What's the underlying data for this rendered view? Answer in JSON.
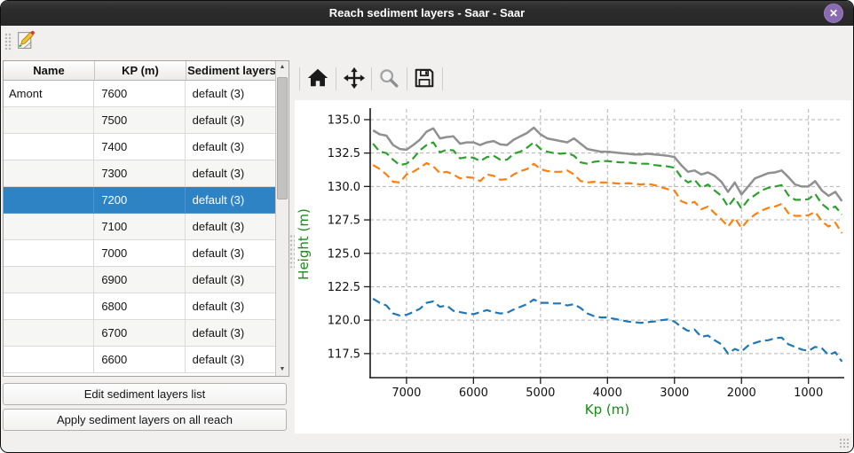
{
  "window": {
    "title": "Reach sediment layers - Saar - Saar",
    "close_glyph": "✕"
  },
  "icons": {
    "edit": "document-pencil",
    "home": "home",
    "pan": "move-arrows",
    "zoom": "magnifier",
    "save": "floppy-disk"
  },
  "table": {
    "columns": [
      "Name",
      "KP (m)",
      "Sediment layers"
    ],
    "selected_index": 4,
    "rows": [
      {
        "name": "Amont",
        "kp": "7600",
        "layers": "default (3)"
      },
      {
        "name": "",
        "kp": "7500",
        "layers": "default (3)"
      },
      {
        "name": "",
        "kp": "7400",
        "layers": "default (3)"
      },
      {
        "name": "",
        "kp": "7300",
        "layers": "default (3)"
      },
      {
        "name": "",
        "kp": "7200",
        "layers": "default (3)"
      },
      {
        "name": "",
        "kp": "7100",
        "layers": "default (3)"
      },
      {
        "name": "",
        "kp": "7000",
        "layers": "default (3)"
      },
      {
        "name": "",
        "kp": "6900",
        "layers": "default (3)"
      },
      {
        "name": "",
        "kp": "6800",
        "layers": "default (3)"
      },
      {
        "name": "",
        "kp": "6700",
        "layers": "default (3)"
      },
      {
        "name": "",
        "kp": "6600",
        "layers": "default (3)"
      }
    ]
  },
  "actions": {
    "edit_list": "Edit sediment layers list",
    "apply_all": "Apply sediment layers on all reach"
  },
  "colors": {
    "selection": "#2e83c5",
    "axis_label_green": "#178c17",
    "titlebar": "#2d2d2d",
    "close_button": "#8a6ab0"
  },
  "chart_data": {
    "type": "line",
    "xlabel": "Kp (m)",
    "ylabel": "Height (m)",
    "x_inverted": true,
    "xlim": [
      7542,
      466
    ],
    "ylim": [
      115.7,
      135.66
    ],
    "x_ticks": [
      7000,
      6000,
      5000,
      4000,
      3000,
      2000,
      1000
    ],
    "y_ticks": [
      135.0,
      132.5,
      130.0,
      127.5,
      125.0,
      122.5,
      120.0,
      117.5
    ],
    "grid": true,
    "legend": "none",
    "x": [
      7500,
      7400,
      7300,
      7200,
      7100,
      7000,
      6900,
      6800,
      6700,
      6600,
      6500,
      6400,
      6300,
      6200,
      6100,
      6000,
      5900,
      5800,
      5700,
      5600,
      5500,
      5400,
      5300,
      5200,
      5100,
      5000,
      4900,
      4800,
      4700,
      4600,
      4500,
      4400,
      4300,
      4200,
      4100,
      4000,
      3900,
      3800,
      3700,
      3600,
      3500,
      3400,
      3300,
      3200,
      3100,
      3000,
      2900,
      2800,
      2700,
      2600,
      2500,
      2400,
      2300,
      2200,
      2100,
      2000,
      1900,
      1800,
      1700,
      1600,
      1500,
      1400,
      1300,
      1200,
      1100,
      1000,
      900,
      800,
      700,
      600,
      500
    ],
    "series": [
      {
        "name": "top-surface-gray",
        "color": "#909090",
        "style": "solid",
        "values": [
          134.2,
          133.9,
          133.8,
          133.1,
          132.8,
          132.75,
          133.1,
          133.5,
          134.1,
          134.35,
          133.6,
          133.7,
          133.75,
          133.2,
          133.3,
          133.3,
          133.1,
          133.3,
          133.4,
          133.15,
          133.1,
          133.5,
          133.75,
          134.0,
          134.4,
          133.9,
          133.6,
          133.5,
          133.4,
          133.3,
          133.6,
          133.2,
          132.8,
          132.7,
          132.6,
          132.6,
          132.55,
          132.5,
          132.45,
          132.4,
          132.4,
          132.45,
          132.4,
          132.35,
          132.3,
          132.2,
          131.6,
          131.1,
          131.2,
          130.9,
          131.05,
          130.8,
          130.35,
          129.6,
          130.3,
          129.4,
          130.0,
          130.6,
          130.8,
          131.0,
          131.05,
          131.2,
          130.7,
          130.15,
          130.0,
          130.0,
          130.4,
          129.7,
          129.3,
          129.6,
          128.9
        ]
      },
      {
        "name": "layer-green",
        "color": "#2ca02c",
        "style": "dashed",
        "values": [
          133.2,
          132.6,
          132.5,
          132.0,
          131.6,
          131.7,
          132.1,
          132.7,
          133.1,
          133.3,
          132.55,
          132.75,
          132.7,
          132.1,
          132.2,
          132.15,
          131.9,
          132.2,
          132.3,
          132.0,
          132.0,
          132.45,
          132.6,
          132.9,
          133.3,
          132.8,
          132.6,
          132.5,
          132.45,
          132.5,
          132.3,
          131.8,
          131.7,
          131.85,
          131.9,
          131.9,
          131.85,
          131.8,
          131.8,
          131.75,
          131.7,
          131.7,
          131.6,
          131.55,
          131.5,
          131.4,
          130.7,
          130.3,
          130.5,
          129.9,
          130.15,
          129.7,
          129.3,
          128.5,
          129.15,
          128.35,
          129.0,
          129.35,
          129.7,
          129.9,
          130.0,
          130.1,
          129.35,
          129.0,
          129.0,
          129.05,
          129.45,
          128.7,
          128.3,
          128.5,
          127.9
        ]
      },
      {
        "name": "layer-orange",
        "color": "#ff7f0e",
        "style": "dashed",
        "values": [
          131.6,
          131.3,
          130.9,
          130.35,
          130.3,
          130.9,
          131.1,
          131.4,
          131.75,
          131.5,
          131.0,
          131.1,
          130.9,
          130.6,
          130.7,
          130.65,
          130.4,
          130.9,
          130.8,
          130.5,
          130.55,
          130.9,
          131.15,
          131.3,
          131.7,
          131.3,
          131.15,
          131.1,
          131.1,
          131.2,
          130.9,
          130.4,
          130.3,
          130.35,
          130.3,
          130.3,
          130.25,
          130.2,
          130.25,
          130.2,
          130.15,
          130.2,
          130.1,
          129.95,
          129.8,
          129.7,
          128.9,
          128.7,
          128.85,
          128.3,
          128.5,
          128.0,
          127.55,
          127.0,
          127.65,
          126.9,
          127.5,
          127.9,
          128.2,
          128.4,
          128.5,
          128.7,
          128.0,
          127.8,
          127.8,
          127.85,
          128.1,
          127.4,
          127.0,
          127.3,
          126.5
        ]
      },
      {
        "name": "bottom-blue",
        "color": "#1f77b4",
        "style": "dashed",
        "values": [
          121.6,
          121.3,
          121.1,
          120.5,
          120.35,
          120.4,
          120.6,
          120.85,
          121.3,
          121.4,
          121.0,
          121.1,
          120.7,
          120.6,
          120.5,
          120.45,
          120.6,
          120.75,
          120.6,
          120.5,
          120.55,
          120.8,
          121.0,
          121.2,
          121.55,
          121.3,
          121.3,
          121.25,
          121.25,
          121.1,
          121.2,
          120.9,
          120.5,
          120.3,
          120.2,
          120.2,
          120.1,
          120.0,
          119.9,
          119.85,
          119.8,
          119.85,
          119.9,
          120.0,
          120.05,
          119.9,
          119.5,
          119.2,
          119.3,
          118.75,
          118.85,
          118.5,
          118.2,
          117.5,
          117.85,
          117.65,
          118.1,
          118.3,
          118.45,
          118.5,
          118.65,
          118.7,
          118.2,
          118.0,
          117.8,
          117.7,
          118.0,
          117.9,
          117.4,
          117.6,
          116.9
        ]
      }
    ]
  }
}
